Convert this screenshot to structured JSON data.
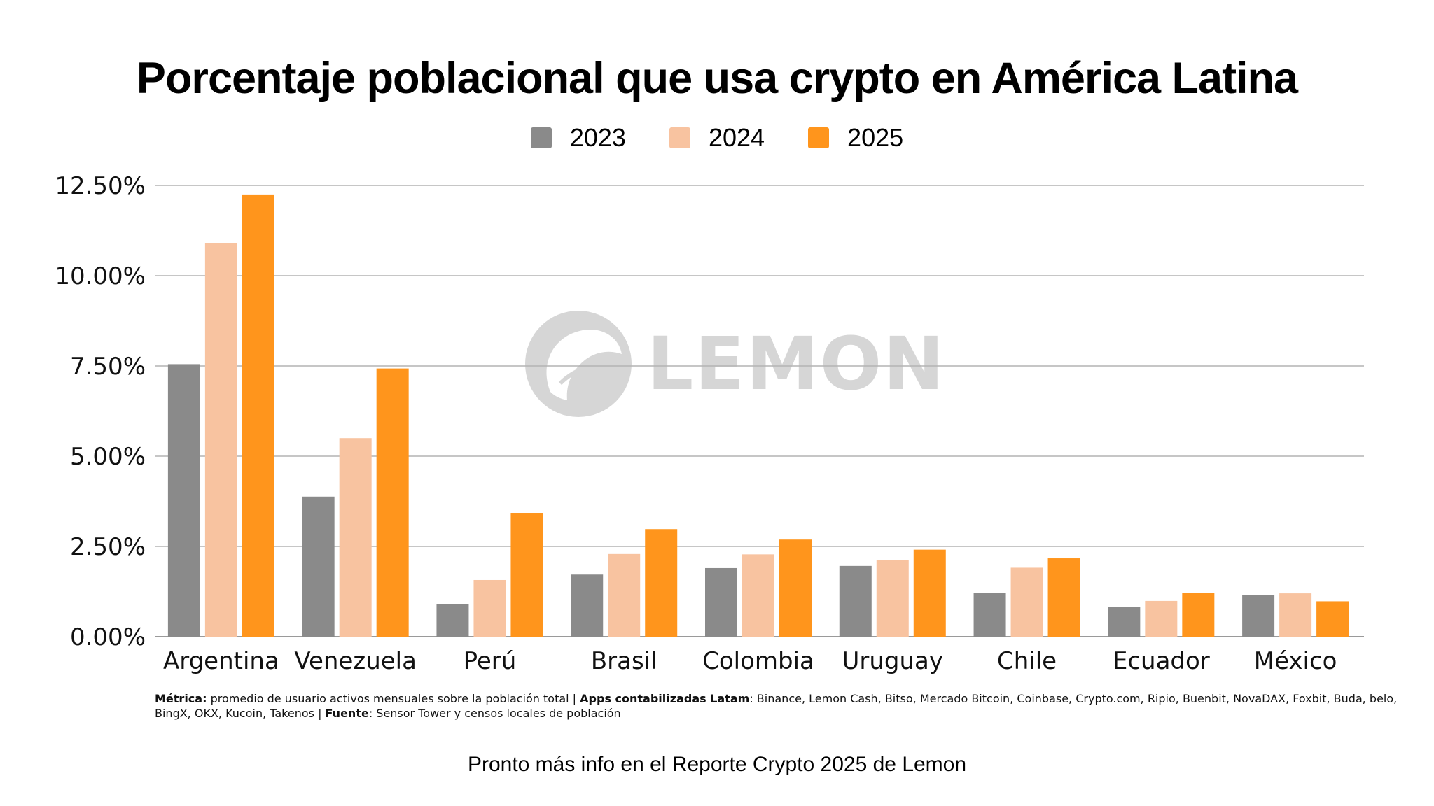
{
  "chart_data": {
    "type": "bar",
    "title": "Porcentaje poblacional que usa crypto en América Latina",
    "categories": [
      "Argentina",
      "Venezuela",
      "Perú",
      "Brasil",
      "Colombia",
      "Uruguay",
      "Chile",
      "Ecuador",
      "México"
    ],
    "series": [
      {
        "name": "2023",
        "color": "#8a8a8a",
        "values": [
          7.55,
          3.88,
          0.9,
          1.72,
          1.9,
          1.96,
          1.21,
          0.82,
          1.15
        ]
      },
      {
        "name": "2024",
        "color": "#f8c3a0",
        "values": [
          10.9,
          5.5,
          1.57,
          2.29,
          2.28,
          2.12,
          1.91,
          0.99,
          1.2
        ]
      },
      {
        "name": "2025",
        "color": "#ff951c",
        "values": [
          12.25,
          7.43,
          3.43,
          2.98,
          2.69,
          2.41,
          2.17,
          1.21,
          0.98
        ]
      }
    ],
    "ylim": [
      0,
      12.5
    ],
    "yticks": [
      "0.00%",
      "2.50%",
      "5.00%",
      "7.50%",
      "10.00%",
      "12.50%"
    ],
    "ytick_values": [
      0,
      2.5,
      5,
      7.5,
      10,
      12.5
    ],
    "xlabel": "",
    "ylabel": "",
    "grid": true,
    "legend_position": "top-center"
  },
  "watermark": {
    "text": "LEMON",
    "icon": "lemon-logo-icon",
    "color": "#d4d4d4"
  },
  "notes": {
    "metric_label": "Métrica:",
    "metric_text": " promedio de usuario activos mensuales sobre la población total | ",
    "apps_label": "Apps contabilizadas Latam",
    "apps_text": ": Binance, Lemon Cash, Bitso, Mercado Bitcoin, Coinbase, Crypto.com, Ripio, Buenbit, NovaDAX, Foxbit, Buda, belo, BingX, OKX, Kucoin, Takenos | ",
    "source_label": "Fuente",
    "source_text": ": Sensor Tower y censos locales de población"
  },
  "footer": "Pronto más info en el Reporte Crypto 2025 de Lemon"
}
